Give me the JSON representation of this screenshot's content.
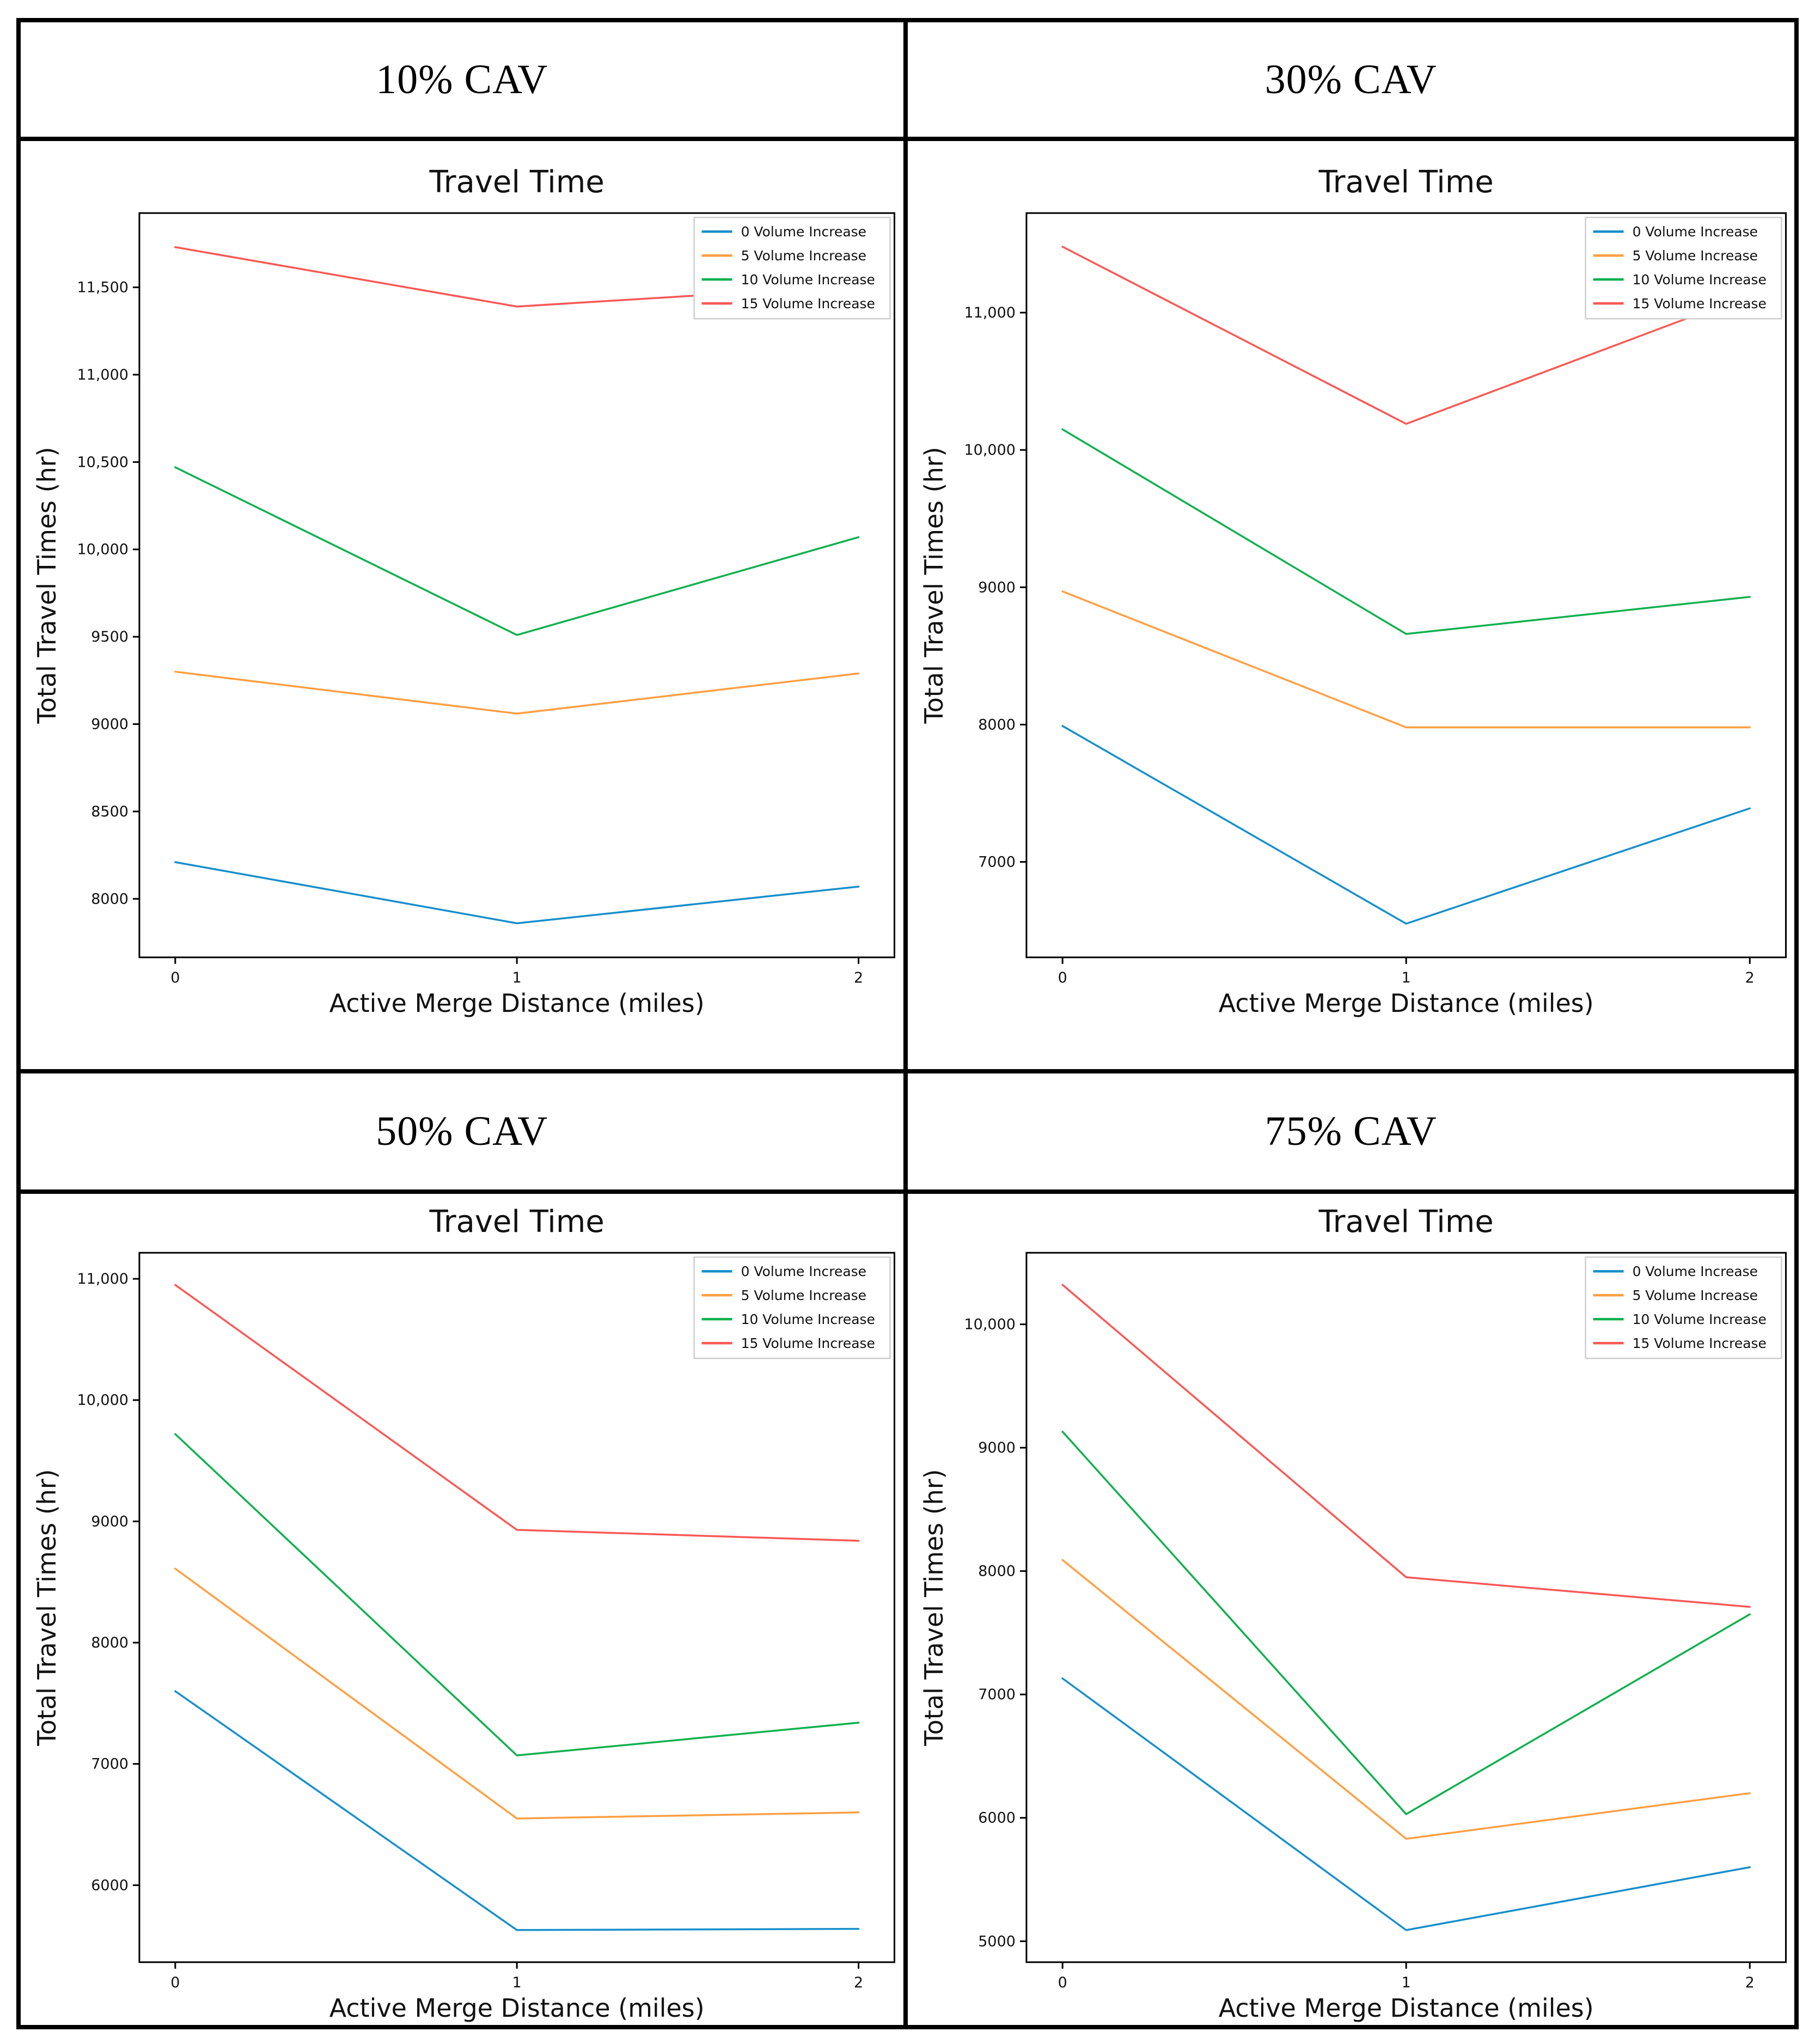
{
  "table": {
    "panels": [
      {
        "header": "10% CAV"
      },
      {
        "header": "30% CAV"
      },
      {
        "header": "50% CAV"
      },
      {
        "header": "75% CAV"
      }
    ]
  },
  "colors": {
    "series_blue": "#178fcb",
    "series_orange": "#ff9f43",
    "series_green": "#10b04e",
    "series_red": "#f95855",
    "axis": "#000000",
    "legend_border": "#cfcfcf"
  },
  "chart_data": [
    {
      "type": "line",
      "panel": "10% CAV",
      "title": "Travel Time",
      "xlabel": "Active Merge Distance (miles)",
      "ylabel": "Total Travel Times (hr)",
      "legend_position": "upper right",
      "grid": false,
      "x": [
        0,
        1,
        2
      ],
      "xtick_labels": [
        "0",
        "1",
        "2"
      ],
      "xlim": [
        -0.105,
        2.105
      ],
      "yticks": [
        8000,
        8500,
        9000,
        9500,
        10000,
        10500,
        11000,
        11500
      ],
      "ytick_labels": [
        "8000",
        "8500",
        "9000",
        "9500",
        "10,000",
        "10,500",
        "11,000",
        "11,500"
      ],
      "ylim": [
        7665,
        11925
      ],
      "series": [
        {
          "name": "0 Volume Increase",
          "color": "#178fcb",
          "values": [
            8210,
            7860,
            8070
          ]
        },
        {
          "name": "5 Volume Increase",
          "color": "#ff9f43",
          "values": [
            9300,
            9060,
            9290
          ]
        },
        {
          "name": "10 Volume Increase",
          "color": "#10b04e",
          "values": [
            10470,
            9510,
            10070
          ]
        },
        {
          "name": "15 Volume Increase",
          "color": "#f95855",
          "values": [
            11730,
            11390,
            11510
          ]
        }
      ]
    },
    {
      "type": "line",
      "panel": "30% CAV",
      "title": "Travel Time",
      "xlabel": "Active Merge Distance (miles)",
      "ylabel": "Total Travel Times (hr)",
      "legend_position": "upper right",
      "grid": false,
      "x": [
        0,
        1,
        2
      ],
      "xtick_labels": [
        "0",
        "1",
        "2"
      ],
      "xlim": [
        -0.105,
        2.105
      ],
      "yticks": [
        7000,
        8000,
        9000,
        10000,
        11000
      ],
      "ytick_labels": [
        "7000",
        "8000",
        "9000",
        "10,000",
        "11,000"
      ],
      "ylim": [
        6305,
        11725
      ],
      "series": [
        {
          "name": "0 Volume Increase",
          "color": "#178fcb",
          "values": [
            7990,
            6550,
            7390
          ]
        },
        {
          "name": "5 Volume Increase",
          "color": "#ff9f43",
          "values": [
            8970,
            7980,
            7980
          ]
        },
        {
          "name": "10 Volume Increase",
          "color": "#10b04e",
          "values": [
            10150,
            8660,
            8930
          ]
        },
        {
          "name": "15 Volume Increase",
          "color": "#f95855",
          "values": [
            11480,
            10190,
            11130
          ]
        }
      ]
    },
    {
      "type": "line",
      "panel": "50% CAV",
      "title": "Travel Time",
      "xlabel": "Active Merge Distance (miles)",
      "ylabel": "Total Travel Times (hr)",
      "legend_position": "upper right",
      "grid": false,
      "x": [
        0,
        1,
        2
      ],
      "xtick_labels": [
        "0",
        "1",
        "2"
      ],
      "xlim": [
        -0.105,
        2.105
      ],
      "yticks": [
        6000,
        7000,
        8000,
        9000,
        10000,
        11000
      ],
      "ytick_labels": [
        "6000",
        "7000",
        "8000",
        "9000",
        "10,000",
        "11,000"
      ],
      "ylim": [
        5365,
        11215
      ],
      "series": [
        {
          "name": "0 Volume Increase",
          "color": "#178fcb",
          "values": [
            7600,
            5630,
            5640
          ]
        },
        {
          "name": "5 Volume Increase",
          "color": "#ff9f43",
          "values": [
            8610,
            6550,
            6600
          ]
        },
        {
          "name": "10 Volume Increase",
          "color": "#10b04e",
          "values": [
            9720,
            7070,
            7340
          ]
        },
        {
          "name": "15 Volume Increase",
          "color": "#f95855",
          "values": [
            10950,
            8930,
            8840
          ]
        }
      ]
    },
    {
      "type": "line",
      "panel": "75% CAV",
      "title": "Travel Time",
      "xlabel": "Active Merge Distance (miles)",
      "ylabel": "Total Travel Times (hr)",
      "legend_position": "upper right",
      "grid": false,
      "x": [
        0,
        1,
        2
      ],
      "xtick_labels": [
        "0",
        "1",
        "2"
      ],
      "xlim": [
        -0.105,
        2.105
      ],
      "yticks": [
        5000,
        6000,
        7000,
        8000,
        9000,
        10000
      ],
      "ytick_labels": [
        "5000",
        "6000",
        "7000",
        "8000",
        "9000",
        "10,000"
      ],
      "ylim": [
        4830,
        10580
      ],
      "series": [
        {
          "name": "0 Volume Increase",
          "color": "#178fcb",
          "values": [
            7130,
            5090,
            5600
          ]
        },
        {
          "name": "5 Volume Increase",
          "color": "#ff9f43",
          "values": [
            8090,
            5830,
            6200
          ]
        },
        {
          "name": "10 Volume Increase",
          "color": "#10b04e",
          "values": [
            9130,
            6030,
            7650
          ]
        },
        {
          "name": "15 Volume Increase",
          "color": "#f95855",
          "values": [
            10320,
            7950,
            7710
          ]
        }
      ]
    }
  ]
}
